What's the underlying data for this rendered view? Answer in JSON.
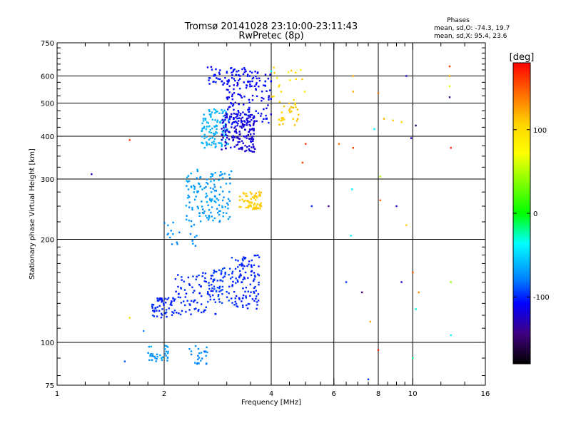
{
  "chart_data": {
    "type": "scatter",
    "title_line1": "Tromsø 20141028 23:10:00-23:11:43",
    "title_line2": "RwPretec (8p)",
    "stats": {
      "heading": "Phases",
      "line1": "mean, sd,O: -74.3, 19.7",
      "line2": "mean, sd,X:  95.4, 23.6"
    },
    "xlabel": "Frequency [MHz]",
    "ylabel": "Stationary phase Virtual Height [km]",
    "xscale": "log",
    "yscale": "log",
    "xlim": [
      1,
      16
    ],
    "ylim": [
      75,
      750
    ],
    "x_tick_labels": [
      "1",
      "2",
      "4",
      "6",
      "8",
      "10",
      "16"
    ],
    "x_tick_values": [
      1,
      2,
      4,
      6,
      8,
      10,
      16
    ],
    "x_gridlines": [
      2,
      4,
      6,
      8,
      10
    ],
    "x_minor_ticks": [
      1.2,
      1.4,
      1.6,
      1.8,
      2.5,
      3,
      3.5,
      4.5,
      5,
      5.5,
      6.5,
      7,
      7.5,
      8.5,
      9,
      9.5,
      12,
      14
    ],
    "y_tick_labels": [
      "75",
      "100",
      "200",
      "300",
      "400",
      "500",
      "600",
      "750"
    ],
    "y_tick_values": [
      75,
      100,
      200,
      300,
      400,
      500,
      600,
      750
    ],
    "y_gridlines": [
      100,
      200,
      300,
      400,
      500,
      600
    ],
    "y_minor_ticks": [
      80,
      90,
      110,
      120,
      130,
      140,
      150,
      160,
      170,
      180,
      190,
      225,
      250,
      275,
      325,
      350,
      375,
      425,
      450,
      475,
      525,
      550,
      575,
      625,
      650,
      675,
      700,
      725
    ],
    "colorbar": {
      "label": "[deg]",
      "range": [
        -180,
        180
      ],
      "tick_labels": [
        "100",
        "0",
        "-100"
      ],
      "tick_values": [
        100,
        0,
        -100
      ]
    },
    "clusters": [
      {
        "fmin": 1.8,
        "fmax": 2.1,
        "hmin": 88,
        "hmax": 98,
        "phase": -70,
        "spread": 12,
        "n": 35
      },
      {
        "fmin": 2.35,
        "fmax": 2.65,
        "hmin": 86,
        "hmax": 98,
        "phase": -75,
        "spread": 12,
        "n": 25
      },
      {
        "fmin": 1.85,
        "fmax": 2.15,
        "hmin": 118,
        "hmax": 135,
        "phase": -100,
        "spread": 8,
        "n": 60
      },
      {
        "fmin": 2.15,
        "fmax": 2.8,
        "hmin": 120,
        "hmax": 160,
        "phase": -100,
        "spread": 8,
        "n": 90
      },
      {
        "fmin": 2.75,
        "fmax": 3.15,
        "hmin": 130,
        "hmax": 165,
        "phase": -95,
        "spread": 8,
        "n": 50
      },
      {
        "fmin": 3.1,
        "fmax": 3.7,
        "hmin": 125,
        "hmax": 180,
        "phase": -100,
        "spread": 8,
        "n": 110
      },
      {
        "fmin": 2.0,
        "fmax": 2.5,
        "hmin": 190,
        "hmax": 230,
        "phase": -75,
        "spread": 10,
        "n": 20
      },
      {
        "fmin": 2.3,
        "fmax": 3.1,
        "hmin": 225,
        "hmax": 320,
        "phase": -70,
        "spread": 10,
        "n": 140
      },
      {
        "fmin": 3.25,
        "fmax": 3.75,
        "hmin": 245,
        "hmax": 275,
        "phase": 110,
        "spread": 8,
        "n": 70
      },
      {
        "fmin": 2.55,
        "fmax": 3.05,
        "hmin": 370,
        "hmax": 480,
        "phase": -62,
        "spread": 8,
        "n": 110
      },
      {
        "fmin": 2.9,
        "fmax": 3.6,
        "hmin": 360,
        "hmax": 470,
        "phase": -120,
        "spread": 12,
        "n": 170
      },
      {
        "fmin": 3.0,
        "fmax": 4.0,
        "hmin": 430,
        "hmax": 620,
        "phase": -110,
        "spread": 14,
        "n": 150
      },
      {
        "fmin": 2.65,
        "fmax": 3.4,
        "hmin": 560,
        "hmax": 640,
        "phase": -105,
        "spread": 12,
        "n": 50
      },
      {
        "fmin": 4.2,
        "fmax": 4.8,
        "hmin": 430,
        "hmax": 500,
        "phase": 110,
        "spread": 10,
        "n": 30
      },
      {
        "fmin": 4.0,
        "fmax": 5.0,
        "hmin": 500,
        "hmax": 640,
        "phase": 100,
        "spread": 30,
        "n": 18
      }
    ],
    "sparse_points": [
      {
        "f": 1.25,
        "h": 310,
        "phase": -120
      },
      {
        "f": 1.6,
        "h": 390,
        "phase": 160
      },
      {
        "f": 1.6,
        "h": 118,
        "phase": 100
      },
      {
        "f": 1.55,
        "h": 88,
        "phase": -90
      },
      {
        "f": 1.75,
        "h": 108,
        "phase": -80
      },
      {
        "f": 5.8,
        "h": 250,
        "phase": -140
      },
      {
        "f": 6.7,
        "h": 205,
        "phase": -40
      },
      {
        "f": 6.75,
        "h": 280,
        "phase": -40
      },
      {
        "f": 6.8,
        "h": 370,
        "phase": 160
      },
      {
        "f": 7.6,
        "h": 115,
        "phase": 120
      },
      {
        "f": 8.0,
        "h": 95,
        "phase": 170
      },
      {
        "f": 8.1,
        "h": 305,
        "phase": 50
      },
      {
        "f": 8.1,
        "h": 260,
        "phase": 150
      },
      {
        "f": 8.3,
        "h": 450,
        "phase": 120
      },
      {
        "f": 9.0,
        "h": 250,
        "phase": -120
      },
      {
        "f": 9.3,
        "h": 150,
        "phase": -120
      },
      {
        "f": 9.6,
        "h": 220,
        "phase": 110
      },
      {
        "f": 9.9,
        "h": 395,
        "phase": -120
      },
      {
        "f": 10.2,
        "h": 430,
        "phase": -160
      },
      {
        "f": 10.0,
        "h": 90,
        "phase": -20
      },
      {
        "f": 6.5,
        "h": 150,
        "phase": -100
      },
      {
        "f": 7.2,
        "h": 140,
        "phase": -150
      },
      {
        "f": 6.8,
        "h": 600,
        "phase": 120
      },
      {
        "f": 6.8,
        "h": 540,
        "phase": 120
      },
      {
        "f": 8.0,
        "h": 535,
        "phase": 140
      },
      {
        "f": 8.8,
        "h": 445,
        "phase": 110
      },
      {
        "f": 9.6,
        "h": 600,
        "phase": -120
      },
      {
        "f": 9.3,
        "h": 440,
        "phase": 100
      },
      {
        "f": 10.0,
        "h": 160,
        "phase": 150
      },
      {
        "f": 10.4,
        "h": 140,
        "phase": 130
      },
      {
        "f": 10.2,
        "h": 125,
        "phase": -30
      },
      {
        "f": 12.7,
        "h": 640,
        "phase": 160
      },
      {
        "f": 12.7,
        "h": 600,
        "phase": 120
      },
      {
        "f": 12.7,
        "h": 560,
        "phase": 60
      },
      {
        "f": 12.7,
        "h": 520,
        "phase": -140
      },
      {
        "f": 12.8,
        "h": 370,
        "phase": 170
      },
      {
        "f": 12.8,
        "h": 150,
        "phase": 40
      },
      {
        "f": 12.8,
        "h": 105,
        "phase": -40
      },
      {
        "f": 4.9,
        "h": 335,
        "phase": 160
      },
      {
        "f": 4.0,
        "h": 620,
        "phase": -40
      },
      {
        "f": 7.5,
        "h": 78,
        "phase": -100
      },
      {
        "f": 7.8,
        "h": 420,
        "phase": -40
      },
      {
        "f": 6.2,
        "h": 380,
        "phase": 140
      },
      {
        "f": 5.2,
        "h": 250,
        "phase": -100
      },
      {
        "f": 5.0,
        "h": 380,
        "phase": 160
      }
    ]
  }
}
